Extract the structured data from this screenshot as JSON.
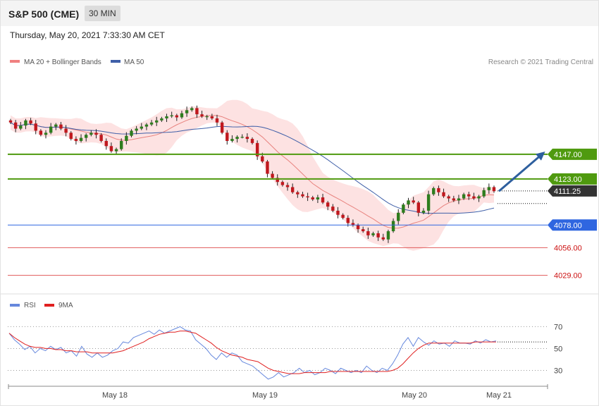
{
  "header": {
    "title": "S&P 500 (CME)",
    "timeframe": "30 MIN",
    "datetime": "Thursday, May 20, 2021 7:33:30 AM CET"
  },
  "legend": {
    "ma20_label": "MA 20 + Bollinger Bands",
    "ma50_label": "MA 50",
    "credit": "Research © 2021 Trading Central",
    "rsi_label": "RSI",
    "rsi_ma_label": "9MA"
  },
  "colors": {
    "bg": "#ffffff",
    "band": "#fde2e2",
    "ma20": "#e8837f",
    "ma50": "#3f5fa8",
    "up": "#2e7d1e",
    "down": "#c0181e",
    "resistance": "#4f9a0f",
    "support_blue": "#2f66e0",
    "support_red": "#e05a5a",
    "arrow": "#2e5f9e",
    "current": "#333333",
    "rsi": "#6688dd",
    "rsi_ma": "#e02020"
  },
  "chart_data": [
    {
      "type": "candlestick",
      "title": "S&P 500 (CME)",
      "ylim": [
        4015,
        4228
      ],
      "x_labels": [
        "May 18",
        "May 19",
        "May 20",
        "May 21"
      ],
      "levels": [
        {
          "label": "4147.00",
          "value": 4147.0,
          "kind": "resistance"
        },
        {
          "label": "4123.00",
          "value": 4123.0,
          "kind": "resistance"
        },
        {
          "label": "4111.25",
          "value": 4111.25,
          "kind": "current"
        },
        {
          "label": "4078.00",
          "value": 4078.0,
          "kind": "support_blue"
        },
        {
          "label": "4056.00",
          "value": 4056.0,
          "kind": "support_red"
        },
        {
          "label": "4029.00",
          "value": 4029.0,
          "kind": "support_red"
        }
      ],
      "last_price": 4111.25,
      "ma50_last": 4099,
      "projection": {
        "from": 4111,
        "to": 4147
      },
      "price_path": [
        4178,
        4172,
        4175,
        4180,
        4177,
        4170,
        4166,
        4168,
        4174,
        4176,
        4172,
        4168,
        4162,
        4160,
        4163,
        4166,
        4168,
        4166,
        4160,
        4155,
        4150,
        4152,
        4160,
        4165,
        4170,
        4172,
        4174,
        4176,
        4178,
        4180,
        4182,
        4184,
        4185,
        4183,
        4187,
        4190,
        4192,
        4186,
        4184,
        4184,
        4182,
        4178,
        4168,
        4160,
        4162,
        4164,
        4164,
        4162,
        4158,
        4145,
        4140,
        4128,
        4124,
        4120,
        4117,
        4115,
        4110,
        4108,
        4106,
        4105,
        4103,
        4105,
        4100,
        4096,
        4092,
        4088,
        4085,
        4080,
        4078,
        4074,
        4072,
        4068,
        4070,
        4066,
        4064,
        4072,
        4082,
        4090,
        4098,
        4102,
        4100,
        4090,
        4092,
        4108,
        4114,
        4110,
        4106,
        4104,
        4102,
        4104,
        4108,
        4106,
        4104,
        4106,
        4112,
        4115,
        4111
      ]
    },
    {
      "type": "line",
      "title": "RSI",
      "ylim": [
        20,
        78
      ],
      "gridlines": [
        30,
        50,
        70
      ],
      "series": [
        {
          "name": "RSI",
          "values": [
            64,
            58,
            54,
            49,
            52,
            46,
            50,
            48,
            52,
            49,
            51,
            46,
            48,
            43,
            52,
            45,
            42,
            46,
            42,
            44,
            48,
            50,
            56,
            55,
            60,
            62,
            64,
            66,
            63,
            67,
            64,
            66,
            68,
            70,
            67,
            66,
            58,
            54,
            50,
            44,
            40,
            46,
            42,
            46,
            44,
            38,
            36,
            34,
            30,
            26,
            22,
            24,
            28,
            24,
            26,
            28,
            32,
            28,
            30,
            26,
            28,
            32,
            30,
            27,
            32,
            30,
            28,
            30,
            28,
            34,
            30,
            28,
            32,
            30,
            36,
            44,
            54,
            60,
            52,
            60,
            56,
            53,
            57,
            54,
            55,
            52,
            57,
            55,
            55,
            54,
            57,
            55,
            58,
            56,
            57
          ]
        },
        {
          "name": "9MA",
          "values": [
            64,
            60,
            57,
            54,
            52,
            51,
            51,
            50,
            50,
            49,
            49,
            48,
            48,
            47,
            47,
            47,
            46,
            46,
            46,
            46,
            46,
            47,
            48,
            50,
            52,
            54,
            56,
            59,
            61,
            63,
            64,
            65,
            65,
            66,
            66,
            65,
            64,
            61,
            58,
            55,
            51,
            48,
            46,
            44,
            43,
            42,
            40,
            39,
            38,
            35,
            32,
            30,
            29,
            28,
            27,
            27,
            27,
            28,
            28,
            28,
            28,
            28,
            29,
            29,
            29,
            29,
            29,
            29,
            29,
            29,
            29,
            29,
            29,
            29,
            30,
            32,
            36,
            41,
            46,
            50,
            53,
            55,
            55,
            55,
            55,
            55,
            55,
            55,
            55,
            55,
            56,
            56,
            56,
            56,
            56
          ]
        }
      ]
    }
  ]
}
